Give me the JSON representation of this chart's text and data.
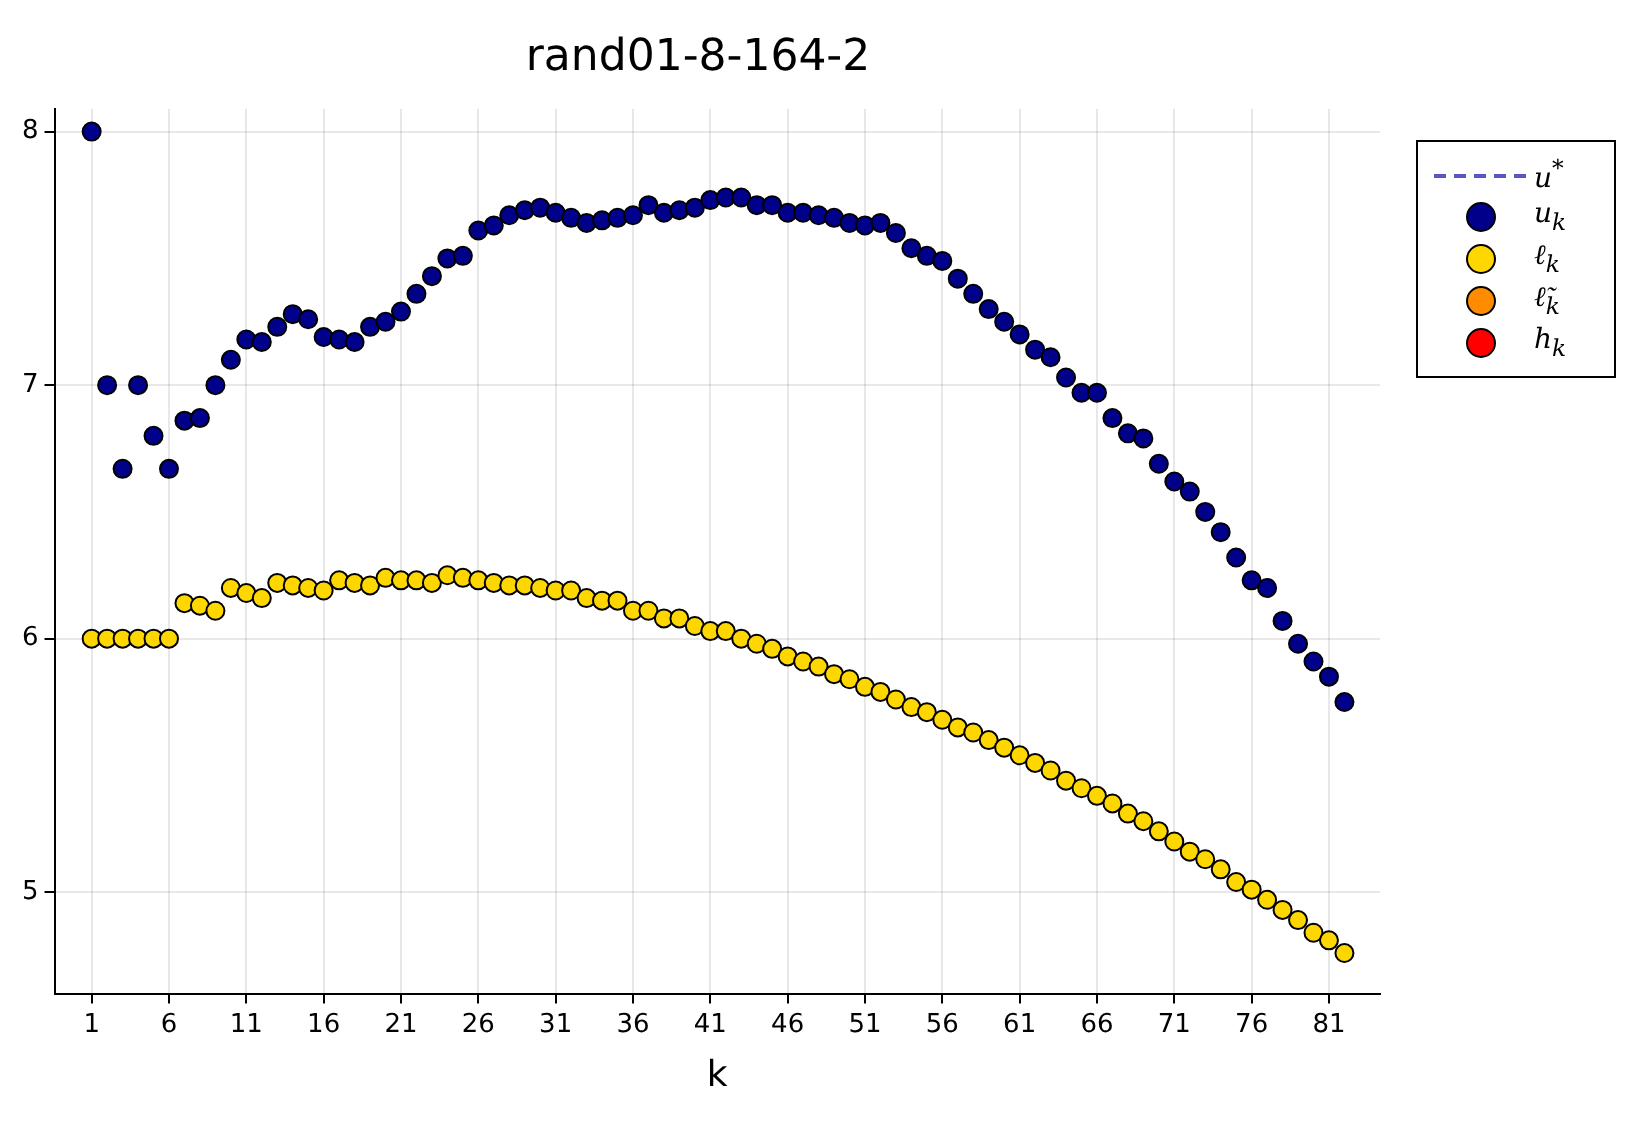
{
  "chart_data": {
    "type": "scatter",
    "title": "rand01-8-164-2",
    "xlabel": "k",
    "x": [
      1,
      2,
      3,
      4,
      5,
      6,
      7,
      8,
      9,
      10,
      11,
      12,
      13,
      14,
      15,
      16,
      17,
      18,
      19,
      20,
      21,
      22,
      23,
      24,
      25,
      26,
      27,
      28,
      29,
      30,
      31,
      32,
      33,
      34,
      35,
      36,
      37,
      38,
      39,
      40,
      41,
      42,
      43,
      44,
      45,
      46,
      47,
      48,
      49,
      50,
      51,
      52,
      53,
      54,
      55,
      56,
      57,
      58,
      59,
      60,
      61,
      62,
      63,
      64,
      65,
      66,
      67,
      68,
      69,
      70,
      71,
      72,
      73,
      74,
      75,
      76,
      77,
      78,
      79,
      80,
      81,
      82
    ],
    "series": [
      {
        "name": "u$^{*}$",
        "type": "line",
        "line_style": "dashed",
        "marker": "none",
        "color": "#5656c8",
        "values": [
          null,
          null,
          null,
          null,
          null,
          null,
          null,
          null,
          null,
          null,
          null,
          null,
          null,
          null,
          null,
          null,
          null,
          null,
          null,
          null,
          null,
          null,
          null,
          null,
          null,
          null,
          null,
          null,
          null,
          null,
          null,
          null,
          null,
          null,
          null,
          null,
          null,
          null,
          null,
          null,
          null,
          null,
          null,
          null,
          null,
          null,
          null,
          null,
          null,
          null,
          null,
          null,
          null,
          null,
          null,
          null,
          null,
          null,
          null,
          null,
          null,
          null,
          null,
          null,
          null,
          null,
          null,
          null,
          null,
          null,
          null,
          null,
          null,
          null,
          null,
          null,
          null,
          null,
          null,
          null,
          null,
          null
        ]
      },
      {
        "name": "u$_{k}$",
        "color": "#00008b",
        "values": [
          8.0,
          7.0,
          6.67,
          7.0,
          6.8,
          6.67,
          6.86,
          6.87,
          7.0,
          7.1,
          7.18,
          7.17,
          7.23,
          7.28,
          7.26,
          7.19,
          7.18,
          7.17,
          7.23,
          7.25,
          7.29,
          7.36,
          7.43,
          7.5,
          7.51,
          7.61,
          7.63,
          7.67,
          7.69,
          7.7,
          7.68,
          7.66,
          7.64,
          7.65,
          7.66,
          7.67,
          7.71,
          7.68,
          7.69,
          7.7,
          7.73,
          7.74,
          7.74,
          7.71,
          7.71,
          7.68,
          7.68,
          7.67,
          7.66,
          7.64,
          7.63,
          7.64,
          7.6,
          7.54,
          7.51,
          7.49,
          7.42,
          7.36,
          7.3,
          7.25,
          7.2,
          7.14,
          7.11,
          7.03,
          6.97,
          6.97,
          6.87,
          6.81,
          6.79,
          6.69,
          6.62,
          6.58,
          6.5,
          6.42,
          6.32,
          6.23,
          6.2,
          6.07,
          5.98,
          5.91,
          5.85,
          5.75
        ]
      },
      {
        "name": "ℓ$_{k}$",
        "color": "#ffd700",
        "values": [
          6.0,
          6.0,
          6.0,
          6.0,
          6.0,
          6.0,
          6.14,
          6.13,
          6.11,
          6.2,
          6.18,
          6.16,
          6.22,
          6.21,
          6.2,
          6.19,
          6.23,
          6.22,
          6.21,
          6.24,
          6.23,
          6.23,
          6.22,
          6.25,
          6.24,
          6.23,
          6.22,
          6.21,
          6.21,
          6.2,
          6.19,
          6.19,
          6.16,
          6.15,
          6.15,
          6.11,
          6.11,
          6.08,
          6.08,
          6.05,
          6.03,
          6.03,
          6.0,
          5.98,
          5.96,
          5.93,
          5.91,
          5.89,
          5.86,
          5.84,
          5.81,
          5.79,
          5.76,
          5.73,
          5.71,
          5.68,
          5.65,
          5.63,
          5.6,
          5.57,
          5.54,
          5.51,
          5.48,
          5.44,
          5.41,
          5.38,
          5.35,
          5.31,
          5.28,
          5.24,
          5.2,
          5.16,
          5.13,
          5.09,
          5.04,
          5.01,
          4.97,
          4.93,
          4.89,
          4.84,
          4.81,
          4.76
        ]
      },
      {
        "name": "ℓ̃$_{k}$",
        "color": "#ff8c00",
        "values": [
          null,
          null,
          null,
          null,
          null,
          null,
          null,
          null,
          null,
          null,
          null,
          null,
          null,
          null,
          null,
          null,
          null,
          null,
          null,
          null,
          null,
          null,
          null,
          null,
          null,
          null,
          null,
          null,
          null,
          null,
          null,
          null,
          null,
          null,
          null,
          null,
          null,
          null,
          null,
          null,
          null,
          null,
          null,
          null,
          null,
          null,
          null,
          null,
          null,
          null,
          null,
          null,
          null,
          null,
          null,
          null,
          null,
          null,
          null,
          null,
          null,
          null,
          null,
          null,
          null,
          null,
          null,
          null,
          null,
          null,
          null,
          null,
          null,
          null,
          null,
          null,
          null,
          null,
          null,
          null,
          null,
          null
        ]
      },
      {
        "name": "h$_{k}$",
        "color": "#ff0000",
        "values": [
          null,
          null,
          null,
          null,
          null,
          null,
          null,
          null,
          null,
          null,
          null,
          null,
          null,
          null,
          null,
          null,
          null,
          null,
          null,
          null,
          null,
          null,
          null,
          null,
          null,
          null,
          null,
          null,
          null,
          null,
          null,
          null,
          null,
          null,
          null,
          null,
          null,
          null,
          null,
          null,
          null,
          null,
          null,
          null,
          null,
          null,
          null,
          null,
          null,
          null,
          null,
          null,
          null,
          null,
          null,
          null,
          null,
          null,
          null,
          null,
          null,
          null,
          null,
          null,
          null,
          null,
          null,
          null,
          null,
          null,
          null,
          null,
          null,
          null,
          null,
          null,
          null,
          null,
          null,
          null,
          null,
          null
        ]
      }
    ],
    "xlim": [
      -1.4,
      84.3
    ],
    "xticks": [
      1,
      6,
      11,
      16,
      21,
      26,
      31,
      36,
      41,
      46,
      51,
      56,
      61,
      66,
      71,
      76,
      81
    ],
    "ylim": [
      4.6,
      8.09
    ],
    "yticks": [
      5,
      6,
      7,
      8
    ],
    "grid": true,
    "legend": "top right",
    "marker": "circle"
  }
}
